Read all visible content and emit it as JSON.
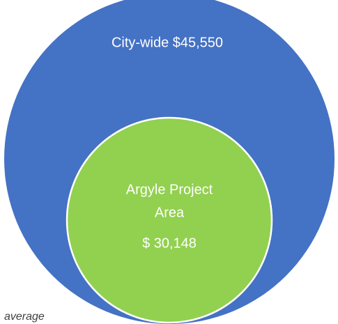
{
  "outer": {
    "label": "City-wide $45,550"
  },
  "inner": {
    "label_lines": [
      "Argyle Project",
      "Area"
    ],
    "value": "$ 30,148"
  },
  "caption": "average"
}
